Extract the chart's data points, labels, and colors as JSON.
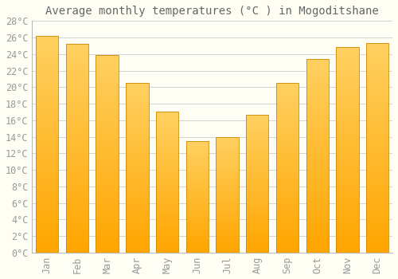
{
  "title": "Average monthly temperatures (°C ) in Mogoditshane",
  "months": [
    "Jan",
    "Feb",
    "Mar",
    "Apr",
    "May",
    "Jun",
    "Jul",
    "Aug",
    "Sep",
    "Oct",
    "Nov",
    "Dec"
  ],
  "values": [
    26.2,
    25.2,
    23.9,
    20.5,
    17.0,
    13.5,
    14.0,
    16.7,
    20.5,
    23.4,
    24.8,
    25.3
  ],
  "bar_color_bottom": "#FFA500",
  "bar_color_top": "#FFD060",
  "bar_edge_color": "#CC8800",
  "background_color": "#FFFEF5",
  "grid_color": "#CCCCCC",
  "text_color": "#999999",
  "title_color": "#666666",
  "ylim": [
    0,
    28
  ],
  "ytick_step": 2,
  "title_fontsize": 10,
  "tick_fontsize": 8.5
}
